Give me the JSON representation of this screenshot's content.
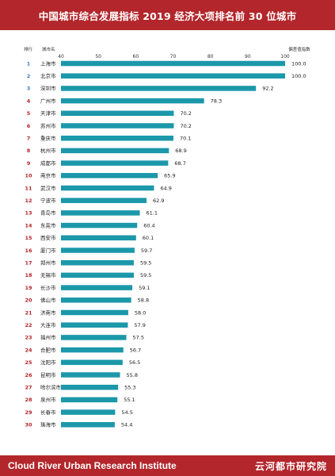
{
  "header": {
    "title": "中国城市综合发展指标 2019 经济大项排名前 30 位城市"
  },
  "footer": {
    "org_en": "Cloud River Urban Research Institute",
    "org_cn": "云河都市研究院"
  },
  "colors": {
    "brand": "#b3262b",
    "bar": "#1b98a9",
    "rank_top": "#3b7fc4",
    "rank_rest": "#b3262b"
  },
  "chart_data": {
    "type": "bar",
    "orientation": "horizontal",
    "col_rank": "排行",
    "col_city": "城市名",
    "col_value": "偏差值指数",
    "xlim": [
      40,
      100
    ],
    "xticks": [
      40,
      50,
      60,
      70,
      80,
      90,
      100
    ],
    "rows": [
      {
        "rank": "1",
        "city": "上海市",
        "value": 100.0
      },
      {
        "rank": "2",
        "city": "北京市",
        "value": 100.0
      },
      {
        "rank": "3",
        "city": "深圳市",
        "value": 92.2
      },
      {
        "rank": "4",
        "city": "广州市",
        "value": 78.3
      },
      {
        "rank": "5",
        "city": "天津市",
        "value": 70.2
      },
      {
        "rank": "6",
        "city": "苏州市",
        "value": 70.2
      },
      {
        "rank": "7",
        "city": "重庆市",
        "value": 70.1
      },
      {
        "rank": "8",
        "city": "杭州市",
        "value": 68.9
      },
      {
        "rank": "9",
        "city": "成都市",
        "value": 68.7
      },
      {
        "rank": "10",
        "city": "南京市",
        "value": 65.9
      },
      {
        "rank": "11",
        "city": "武汉市",
        "value": 64.9
      },
      {
        "rank": "12",
        "city": "宁波市",
        "value": 62.9
      },
      {
        "rank": "13",
        "city": "青岛市",
        "value": 61.1
      },
      {
        "rank": "14",
        "city": "东莞市",
        "value": 60.4
      },
      {
        "rank": "15",
        "city": "西安市",
        "value": 60.1
      },
      {
        "rank": "16",
        "city": "厦门市",
        "value": 59.7
      },
      {
        "rank": "17",
        "city": "郑州市",
        "value": 59.5
      },
      {
        "rank": "18",
        "city": "无锡市",
        "value": 59.5
      },
      {
        "rank": "19",
        "city": "长沙市",
        "value": 59.1
      },
      {
        "rank": "20",
        "city": "佛山市",
        "value": 58.8
      },
      {
        "rank": "21",
        "city": "济南市",
        "value": 58.0
      },
      {
        "rank": "22",
        "city": "大连市",
        "value": 57.9
      },
      {
        "rank": "23",
        "city": "福州市",
        "value": 57.5
      },
      {
        "rank": "24",
        "city": "合肥市",
        "value": 56.7
      },
      {
        "rank": "25",
        "city": "沈阳市",
        "value": 56.5
      },
      {
        "rank": "26",
        "city": "昆明市",
        "value": 55.8
      },
      {
        "rank": "27",
        "city": "哈尔滨市",
        "value": 55.3
      },
      {
        "rank": "28",
        "city": "泉州市",
        "value": 55.1
      },
      {
        "rank": "29",
        "city": "长春市",
        "value": 54.5
      },
      {
        "rank": "30",
        "city": "珠海市",
        "value": 54.4
      }
    ]
  }
}
